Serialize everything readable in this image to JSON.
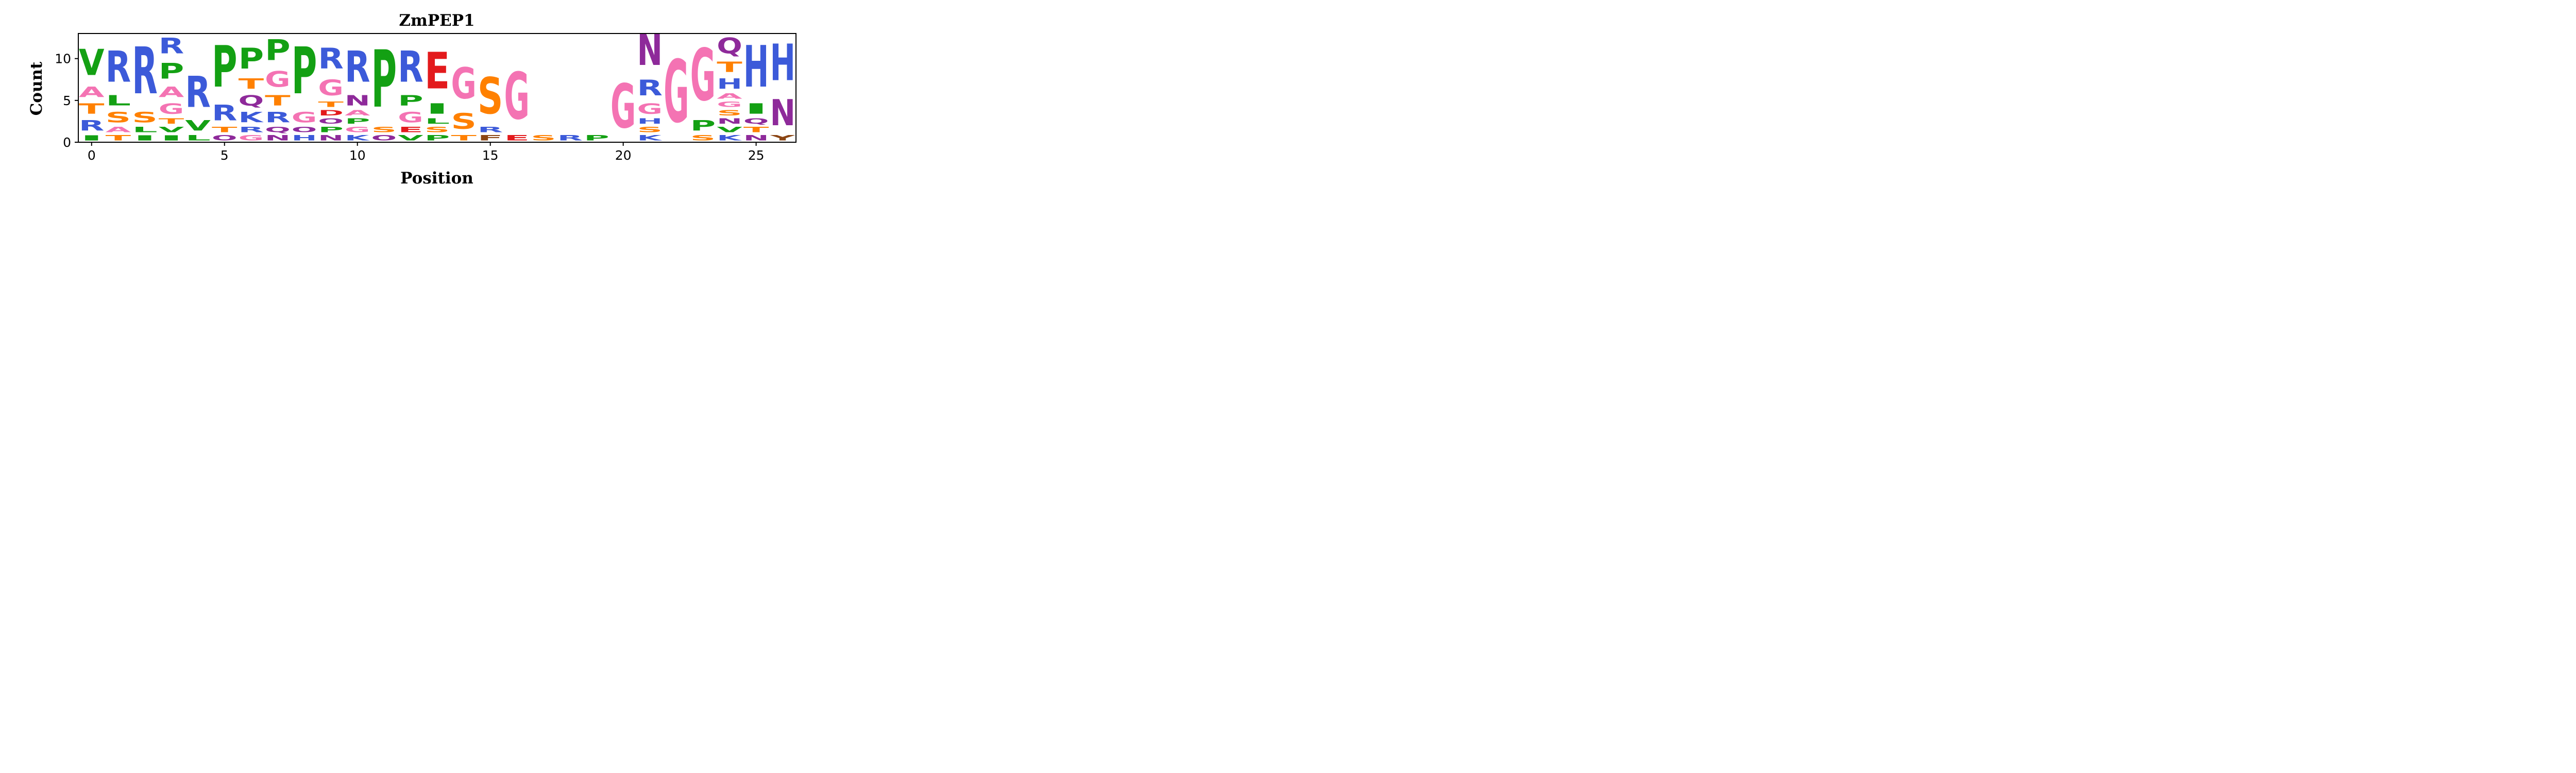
{
  "chart_data": {
    "type": "sequence-logo",
    "title": "ZmPEP1",
    "xlabel": "Position",
    "ylabel": "Count",
    "xlim": [
      -0.5,
      26.5
    ],
    "ylim": [
      0,
      13
    ],
    "xticks": [
      0,
      5,
      10,
      15,
      20,
      25
    ],
    "yticks": [
      0,
      5,
      10
    ],
    "colors": {
      "V": "#13a013",
      "L": "#13a013",
      "P": "#13a013",
      "I": "#13a013",
      "R": "#3c5ad9",
      "K": "#3c5ad9",
      "H": "#3c5ad9",
      "A": "#f473b3",
      "G": "#f473b3",
      "S": "#ff8000",
      "T": "#ff8000",
      "Q": "#8e2a9a",
      "N": "#8e2a9a",
      "O": "#8e2a9a",
      "E": "#e31a1c",
      "D": "#e31a1c",
      "F": "#8b4513",
      "Y": "#8b4513"
    },
    "positions": [
      {
        "x": 0,
        "letters": [
          [
            "I",
            1
          ],
          [
            "R",
            2
          ],
          [
            "T",
            2
          ],
          [
            "A",
            2
          ],
          [
            "V",
            5
          ]
        ]
      },
      {
        "x": 1,
        "letters": [
          [
            "T",
            1
          ],
          [
            "A",
            1
          ],
          [
            "S",
            2
          ],
          [
            "L",
            2
          ],
          [
            "R",
            6
          ]
        ]
      },
      {
        "x": 2,
        "letters": [
          [
            "I",
            1
          ],
          [
            "L",
            1
          ],
          [
            "S",
            2
          ],
          [
            "R",
            9
          ]
        ]
      },
      {
        "x": 3,
        "letters": [
          [
            "I",
            1
          ],
          [
            "V",
            1
          ],
          [
            "T",
            1
          ],
          [
            "G",
            2
          ],
          [
            "A",
            2
          ],
          [
            "P",
            3
          ],
          [
            "R",
            3
          ]
        ]
      },
      {
        "x": 4,
        "letters": [
          [
            "L",
            1
          ],
          [
            "V",
            2
          ],
          [
            "R",
            6
          ]
        ]
      },
      {
        "x": 5,
        "letters": [
          [
            "O",
            1
          ],
          [
            "T",
            1
          ],
          [
            "R",
            3
          ],
          [
            "P",
            8
          ]
        ]
      },
      {
        "x": 6,
        "letters": [
          [
            "G",
            1
          ],
          [
            "R",
            1
          ],
          [
            "K",
            2
          ],
          [
            "Q",
            2
          ],
          [
            "T",
            2
          ],
          [
            "P",
            4
          ]
        ]
      },
      {
        "x": 7,
        "letters": [
          [
            "N",
            1
          ],
          [
            "Q",
            1
          ],
          [
            "R",
            2
          ],
          [
            "T",
            2
          ],
          [
            "G",
            3
          ],
          [
            "P",
            4
          ]
        ]
      },
      {
        "x": 8,
        "letters": [
          [
            "H",
            1
          ],
          [
            "O",
            1
          ],
          [
            "G",
            2
          ],
          [
            "P",
            9
          ]
        ]
      },
      {
        "x": 9,
        "letters": [
          [
            "N",
            1
          ],
          [
            "P",
            1
          ],
          [
            "O",
            1
          ],
          [
            "D",
            1
          ],
          [
            "T",
            1
          ],
          [
            "G",
            3
          ],
          [
            "R",
            4
          ]
        ]
      },
      {
        "x": 10,
        "letters": [
          [
            "K",
            1
          ],
          [
            "G",
            1
          ],
          [
            "P",
            1
          ],
          [
            "A",
            1
          ],
          [
            "N",
            2
          ],
          [
            "R",
            6
          ]
        ]
      },
      {
        "x": 11,
        "letters": [
          [
            "O",
            1
          ],
          [
            "S",
            1
          ],
          [
            "P",
            11
          ]
        ]
      },
      {
        "x": 12,
        "letters": [
          [
            "V",
            1
          ],
          [
            "E",
            1
          ],
          [
            "G",
            2
          ],
          [
            "P",
            2
          ],
          [
            "R",
            6
          ]
        ]
      },
      {
        "x": 13,
        "letters": [
          [
            "P",
            1
          ],
          [
            "S",
            1
          ],
          [
            "L",
            1
          ],
          [
            "I",
            2
          ],
          [
            "E",
            7
          ]
        ]
      },
      {
        "x": 14,
        "letters": [
          [
            "T",
            1
          ],
          [
            "S",
            3
          ],
          [
            "G",
            6
          ]
        ]
      },
      {
        "x": 15,
        "letters": [
          [
            "F",
            1
          ],
          [
            "R",
            1
          ],
          [
            "S",
            7
          ]
        ]
      },
      {
        "x": 16,
        "letters": [
          [
            "E",
            1
          ],
          [
            "G",
            9
          ]
        ]
      },
      {
        "x": 17,
        "letters": [
          [
            "S",
            1
          ]
        ]
      },
      {
        "x": 18,
        "letters": [
          [
            "R",
            1
          ]
        ]
      },
      {
        "x": 19,
        "letters": [
          [
            "P",
            1
          ]
        ]
      },
      {
        "x": 20,
        "letters": [
          [
            "G",
            8.5
          ]
        ]
      },
      {
        "x": 21,
        "letters": [
          [
            "K",
            1
          ],
          [
            "S",
            1
          ],
          [
            "H",
            1
          ],
          [
            "G",
            2
          ],
          [
            "R",
            3
          ],
          [
            "N",
            6
          ]
        ]
      },
      {
        "x": 22,
        "letters": [
          [
            "G",
            12
          ]
        ]
      },
      {
        "x": 23,
        "letters": [
          [
            "S",
            1
          ],
          [
            "P",
            2
          ],
          [
            "G",
            10
          ]
        ]
      },
      {
        "x": 24,
        "letters": [
          [
            "K",
            1
          ],
          [
            "V",
            1
          ],
          [
            "N",
            1
          ],
          [
            "S",
            1
          ],
          [
            "G",
            1
          ],
          [
            "A",
            1
          ],
          [
            "H",
            2
          ],
          [
            "T",
            2
          ],
          [
            "Q",
            3
          ]
        ]
      },
      {
        "x": 25,
        "letters": [
          [
            "N",
            1
          ],
          [
            "T",
            1
          ],
          [
            "Q",
            1
          ],
          [
            "I",
            2
          ],
          [
            "H",
            8
          ]
        ]
      },
      {
        "x": 26,
        "letters": [
          [
            "Y",
            1
          ],
          [
            "N",
            5
          ],
          [
            "H",
            7
          ]
        ]
      }
    ]
  }
}
